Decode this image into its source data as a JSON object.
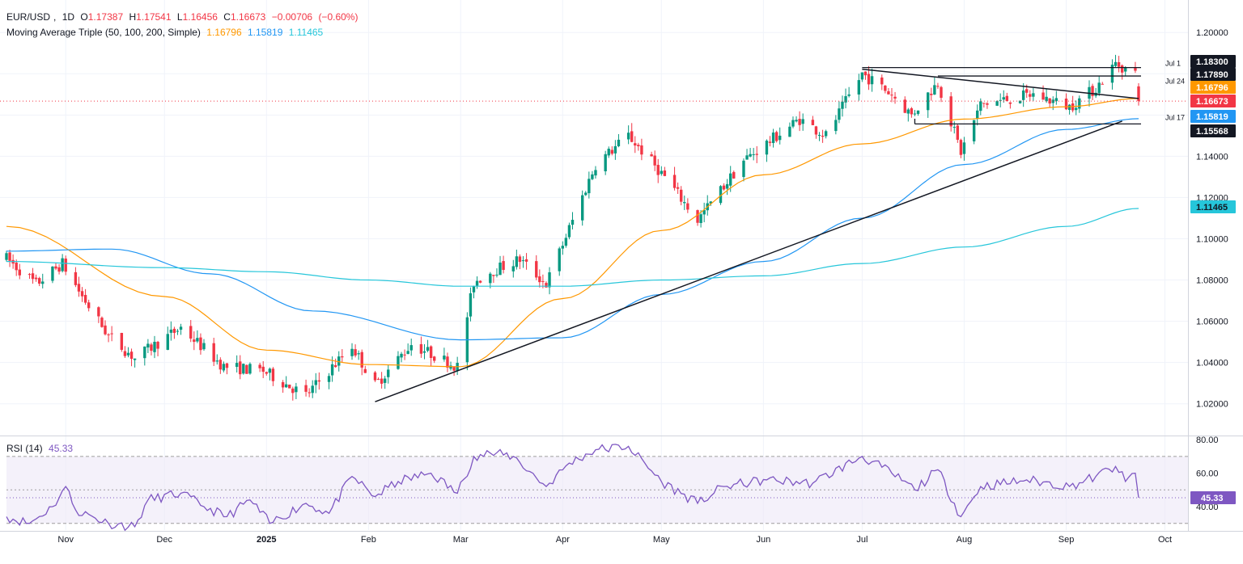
{
  "header": {
    "symbol": "EUR/USD",
    "timeframe": "1D",
    "open_label": "O",
    "open": "1.17387",
    "high_label": "H",
    "high": "1.17541",
    "low_label": "L",
    "low": "1.16456",
    "close_label": "C",
    "close": "1.16673",
    "change": "−0.00706",
    "change_pct": "(−0.60%)",
    "ma_label": "Moving Average Triple (50, 100, 200, Simple)",
    "ma50": "1.16796",
    "ma100": "1.15819",
    "ma200": "1.11465",
    "rsi_label": "RSI (14)",
    "rsi_value": "45.33"
  },
  "colors": {
    "up": "#089981",
    "down": "#f23645",
    "ma50": "#ff9800",
    "ma100": "#2196f3",
    "ma200": "#26c6da",
    "rsi": "#7e57c2",
    "rsi_band": "#ede7f6",
    "trendline": "#131722",
    "last_price": "#f23645",
    "grid": "#f0f3fa"
  },
  "chart_data": [
    {
      "type": "candlestick",
      "title": "EUR/USD, 1D",
      "y_axis_ticks": [
        "1.20000",
        "1.18000",
        "1.16000",
        "1.14000",
        "1.12000",
        "1.10000",
        "1.08000",
        "1.06000",
        "1.04000",
        "1.02000"
      ],
      "ylim": [
        1.005,
        1.204
      ],
      "x_axis_ticks": [
        "Nov",
        "Dec",
        "2025",
        "Feb",
        "Mar",
        "Apr",
        "May",
        "Jun",
        "Jul",
        "Aug",
        "Sep",
        "Oct"
      ],
      "x_tick_dates": [
        "2024-11-01",
        "2024-12-01",
        "2025-01-01",
        "2025-02-01",
        "2025-03-01",
        "2025-04-01",
        "2025-05-01",
        "2025-06-01",
        "2025-07-01",
        "2025-08-01",
        "2025-09-01",
        "2025-10-01"
      ],
      "date_range": [
        "2024-10-14",
        "2025-10-08"
      ],
      "last_date": "2025-09-23",
      "price_path": [
        [
          "2024-10-14",
          1.0905
        ],
        [
          "2024-10-23",
          1.078
        ],
        [
          "2024-10-31",
          1.088
        ],
        [
          "2024-11-06",
          1.072
        ],
        [
          "2024-11-14",
          1.053
        ],
        [
          "2024-11-22",
          1.042
        ],
        [
          "2024-12-06",
          1.057
        ],
        [
          "2024-12-19",
          1.038
        ],
        [
          "2024-12-31",
          1.036
        ],
        [
          "2025-01-13",
          1.024
        ],
        [
          "2025-01-27",
          1.048
        ],
        [
          "2025-02-03",
          1.029
        ],
        [
          "2025-02-14",
          1.049
        ],
        [
          "2025-02-28",
          1.038
        ],
        [
          "2025-03-05",
          1.079
        ],
        [
          "2025-03-10",
          1.084
        ],
        [
          "2025-03-19",
          1.09
        ],
        [
          "2025-03-27",
          1.078
        ],
        [
          "2025-04-03",
          1.105
        ],
        [
          "2025-04-11",
          1.136
        ],
        [
          "2025-04-21",
          1.15
        ],
        [
          "2025-05-02",
          1.13
        ],
        [
          "2025-05-12",
          1.109
        ],
        [
          "2025-05-26",
          1.138
        ],
        [
          "2025-06-12",
          1.158
        ],
        [
          "2025-06-20",
          1.15
        ],
        [
          "2025-07-01",
          1.18
        ],
        [
          "2025-07-10",
          1.17
        ],
        [
          "2025-07-16",
          1.16
        ],
        [
          "2025-07-24",
          1.176
        ],
        [
          "2025-07-31",
          1.142
        ],
        [
          "2025-08-06",
          1.165
        ],
        [
          "2025-08-22",
          1.17
        ],
        [
          "2025-09-02",
          1.164
        ],
        [
          "2025-09-10",
          1.173
        ],
        [
          "2025-09-16",
          1.185
        ],
        [
          "2025-09-22",
          1.18
        ],
        [
          "2025-09-23",
          1.1667
        ]
      ],
      "last_candle": {
        "open": 1.17387,
        "high": 1.17541,
        "low": 1.16456,
        "close": 1.16673
      },
      "series": [
        {
          "name": "MA 50",
          "values": [
            [
              "2024-10-14",
              1.106
            ],
            [
              "2024-12-01",
              1.072
            ],
            [
              "2025-01-01",
              1.046
            ],
            [
              "2025-02-01",
              1.039
            ],
            [
              "2025-03-01",
              1.038
            ],
            [
              "2025-04-01",
              1.071
            ],
            [
              "2025-05-01",
              1.104
            ],
            [
              "2025-06-01",
              1.131
            ],
            [
              "2025-07-01",
              1.146
            ],
            [
              "2025-08-01",
              1.158
            ],
            [
              "2025-09-01",
              1.164
            ],
            [
              "2025-09-23",
              1.168
            ]
          ]
        },
        {
          "name": "MA 100",
          "values": [
            [
              "2024-10-14",
              1.094
            ],
            [
              "2024-11-15",
              1.095
            ],
            [
              "2024-12-15",
              1.083
            ],
            [
              "2025-01-15",
              1.065
            ],
            [
              "2025-03-01",
              1.051
            ],
            [
              "2025-04-01",
              1.052
            ],
            [
              "2025-05-01",
              1.073
            ],
            [
              "2025-06-01",
              1.089
            ],
            [
              "2025-07-01",
              1.11
            ],
            [
              "2025-08-01",
              1.136
            ],
            [
              "2025-09-01",
              1.153
            ],
            [
              "2025-09-23",
              1.1582
            ]
          ]
        },
        {
          "name": "MA 200",
          "values": [
            [
              "2024-10-14",
              1.089
            ],
            [
              "2024-12-01",
              1.086
            ],
            [
              "2025-01-01",
              1.084
            ],
            [
              "2025-02-01",
              1.08
            ],
            [
              "2025-03-01",
              1.077
            ],
            [
              "2025-04-01",
              1.077
            ],
            [
              "2025-05-01",
              1.08
            ],
            [
              "2025-06-01",
              1.082
            ],
            [
              "2025-07-01",
              1.088
            ],
            [
              "2025-08-01",
              1.096
            ],
            [
              "2025-09-01",
              1.106
            ],
            [
              "2025-09-23",
              1.1147
            ]
          ]
        }
      ],
      "trendlines": [
        {
          "from": [
            "2025-02-03",
            1.021
          ],
          "to": [
            "2025-09-18",
            1.157
          ]
        },
        {
          "from": [
            "2025-07-01",
            1.1822
          ],
          "to": [
            "2025-09-23",
            1.168
          ]
        }
      ],
      "horizontal_levels": [
        {
          "label": "Jul 1",
          "value": "1.18300",
          "from": "2025-07-01"
        },
        {
          "label": "",
          "value": "1.17890",
          "from": "2025-07-24"
        },
        {
          "label": "Jul 24",
          "value": "",
          "from": "2025-07-24"
        },
        {
          "label": "Jul 17",
          "value": "1.15568",
          "from": "2025-07-17"
        }
      ],
      "price_labels": [
        {
          "value": "1.18300",
          "kind": "level"
        },
        {
          "value": "1.17890",
          "kind": "level"
        },
        {
          "value": "1.16796",
          "kind": "ma50"
        },
        {
          "value": "1.16673",
          "kind": "last"
        },
        {
          "value": "1.15819",
          "kind": "ma100"
        },
        {
          "value": "1.15568",
          "kind": "level"
        },
        {
          "value": "1.11465",
          "kind": "ma200"
        }
      ]
    },
    {
      "type": "line",
      "title": "RSI (14)",
      "ylim": [
        26,
        82
      ],
      "y_axis_ticks": [
        "80.00",
        "60.00",
        "40.00"
      ],
      "bands": [
        30,
        50,
        70
      ],
      "current": "45.33",
      "values": [
        [
          "2024-10-14",
          34
        ],
        [
          "2024-10-21",
          30
        ],
        [
          "2024-10-28",
          40
        ],
        [
          "2024-11-01",
          52
        ],
        [
          "2024-11-04",
          38
        ],
        [
          "2024-11-14",
          30
        ],
        [
          "2024-11-22",
          28
        ],
        [
          "2024-11-26",
          44
        ],
        [
          "2024-12-06",
          48
        ],
        [
          "2024-12-13",
          40
        ],
        [
          "2024-12-20",
          34
        ],
        [
          "2024-12-27",
          44
        ],
        [
          "2025-01-02",
          30
        ],
        [
          "2025-01-13",
          42
        ],
        [
          "2025-01-20",
          36
        ],
        [
          "2025-01-27",
          58
        ],
        [
          "2025-02-03",
          46
        ],
        [
          "2025-02-10",
          55
        ],
        [
          "2025-02-20",
          60
        ],
        [
          "2025-02-28",
          48
        ],
        [
          "2025-03-05",
          70
        ],
        [
          "2025-03-10",
          72
        ],
        [
          "2025-03-17",
          70
        ],
        [
          "2025-03-27",
          52
        ],
        [
          "2025-04-03",
          66
        ],
        [
          "2025-04-11",
          74
        ],
        [
          "2025-04-21",
          76
        ],
        [
          "2025-05-01",
          55
        ],
        [
          "2025-05-12",
          42
        ],
        [
          "2025-05-20",
          52
        ],
        [
          "2025-06-02",
          56
        ],
        [
          "2025-06-16",
          54
        ],
        [
          "2025-07-01",
          70
        ],
        [
          "2025-07-10",
          60
        ],
        [
          "2025-07-17",
          50
        ],
        [
          "2025-07-24",
          62
        ],
        [
          "2025-07-31",
          34
        ],
        [
          "2025-08-06",
          52
        ],
        [
          "2025-08-20",
          56
        ],
        [
          "2025-09-02",
          52
        ],
        [
          "2025-09-10",
          58
        ],
        [
          "2025-09-16",
          64
        ],
        [
          "2025-09-19",
          55
        ],
        [
          "2025-09-22",
          60
        ],
        [
          "2025-09-23",
          45.33
        ]
      ]
    }
  ]
}
